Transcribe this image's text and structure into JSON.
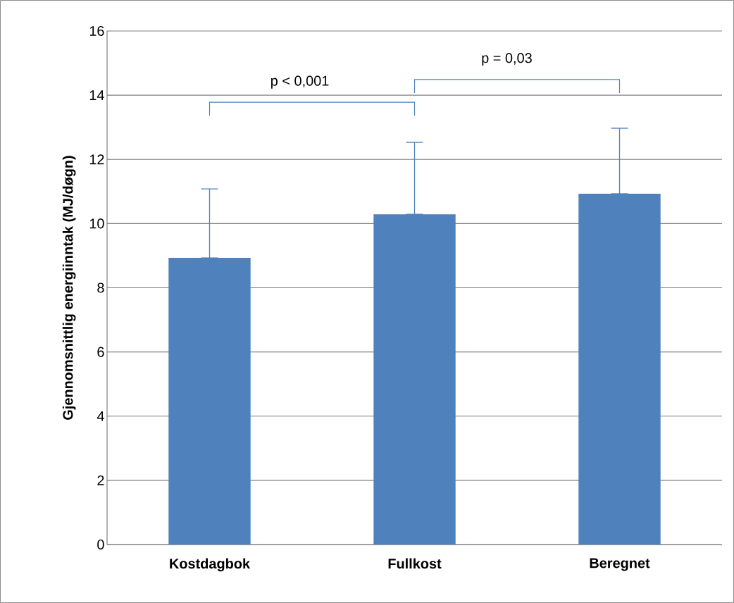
{
  "chart_data": {
    "type": "bar",
    "ylabel": "Gjennomsnittlig energiinntak (MJ/døgn)",
    "categories": [
      "Kostdagbok",
      "Fullkost",
      "Beregnet"
    ],
    "values": [
      8.93,
      10.29,
      10.93
    ],
    "errors": [
      [
        8.93,
        11.08
      ],
      [
        10.29,
        12.53
      ],
      [
        10.93,
        12.97
      ]
    ],
    "color": "#4f81bd",
    "ylim": [
      0,
      16
    ],
    "yticks": [
      0,
      2,
      4,
      6,
      8,
      10,
      12,
      14,
      16
    ],
    "grid": "y",
    "annotations": [
      "p < 0,001",
      "p = 0,03"
    ]
  }
}
